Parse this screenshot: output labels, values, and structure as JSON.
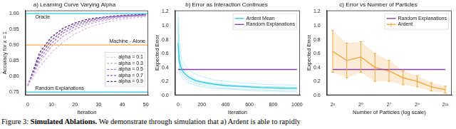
{
  "chart_data": [
    {
      "type": "line",
      "title": "a) Learning Curve Varying Alpha",
      "x_label": "Iteration",
      "y_label": "Accuracy for x = 1",
      "x": [
        0,
        5,
        10,
        15,
        20,
        25,
        30,
        35,
        40,
        45,
        50
      ],
      "series": [
        {
          "name": "alpha = 0.1",
          "color": "#dcc2ea",
          "line_style": "dashed",
          "values": [
            0.77,
            0.83,
            0.875,
            0.91,
            0.935,
            0.953,
            0.966,
            0.975,
            0.982,
            0.986,
            0.989
          ]
        },
        {
          "name": "alpha = 0.3",
          "color": "#c4a0dc",
          "line_style": "dashed",
          "values": [
            0.77,
            0.845,
            0.895,
            0.928,
            0.95,
            0.965,
            0.975,
            0.982,
            0.987,
            0.99,
            0.992
          ]
        },
        {
          "name": "alpha = 0.5",
          "color": "#a57cc6",
          "line_style": "dashed",
          "values": [
            0.77,
            0.855,
            0.905,
            0.938,
            0.958,
            0.971,
            0.98,
            0.986,
            0.99,
            0.992,
            0.994
          ]
        },
        {
          "name": "alpha = 0.7",
          "color": "#8456ad",
          "line_style": "dashed",
          "values": [
            0.77,
            0.865,
            0.915,
            0.945,
            0.964,
            0.976,
            0.984,
            0.989,
            0.992,
            0.994,
            0.996
          ]
        },
        {
          "name": "alpha = 0.9",
          "color": "#5f2c8c",
          "line_style": "dashed",
          "values": [
            0.77,
            0.875,
            0.925,
            0.953,
            0.97,
            0.981,
            0.987,
            0.991,
            0.994,
            0.996,
            0.997
          ]
        }
      ],
      "annotations": [
        {
          "text": "Oracle",
          "y": 1.0,
          "color": "#52d2ea"
        },
        {
          "text": "Machine - Alone",
          "y": 0.9,
          "color": "#f5a742"
        },
        {
          "text": "Random Explanations",
          "y": 0.75,
          "color": "#52d2ea"
        }
      ],
      "xlim": [
        -1,
        51
      ],
      "xticks": [
        0,
        10,
        20,
        30,
        40,
        50
      ],
      "ylim": [
        0.74,
        1.01
      ],
      "yticks": [
        0.75,
        {
          "value": 0.8,
          "label": "0.80"
        },
        0.85,
        {
          "value": 0.9,
          "label": "0.90"
        },
        0.95,
        {
          "value": 1.0,
          "label": "1.00"
        }
      ],
      "legend": "lower right",
      "grid": false
    },
    {
      "type": "line",
      "title": "b) Error as Interaction Continues",
      "x_label": "Iteration",
      "y_label": "Expected Error",
      "x": [
        0,
        5,
        10,
        20,
        35,
        50,
        75,
        100,
        150,
        200,
        300,
        400,
        500,
        600,
        700,
        800,
        900,
        1000
      ],
      "series": [
        {
          "color": "#8ee0ef",
          "values": [
            1.2,
            1.0,
            0.8,
            0.6,
            0.5,
            0.45,
            0.4,
            0.35,
            0.3,
            0.27,
            0.22,
            0.2,
            0.18,
            0.17,
            0.16,
            0.15,
            0.15,
            0.14
          ]
        },
        {
          "color": "#8ee0ef",
          "values": [
            0.9,
            0.7,
            0.55,
            0.45,
            0.38,
            0.33,
            0.28,
            0.24,
            0.2,
            0.18,
            0.15,
            0.13,
            0.12,
            0.11,
            0.1,
            0.1,
            0.09,
            0.09
          ]
        },
        {
          "color": "#8ee0ef",
          "values": [
            1.1,
            0.6,
            0.45,
            0.35,
            0.3,
            0.27,
            0.22,
            0.2,
            0.17,
            0.15,
            0.12,
            0.1,
            0.09,
            0.08,
            0.08,
            0.07,
            0.07,
            0.07
          ]
        },
        {
          "color": "#8ee0ef",
          "values": [
            0.6,
            0.5,
            0.42,
            0.38,
            0.32,
            0.28,
            0.25,
            0.22,
            0.19,
            0.17,
            0.15,
            0.14,
            0.13,
            0.13,
            0.12,
            0.12,
            0.11,
            0.11
          ]
        },
        {
          "color": "#8ee0ef",
          "values": [
            1.0,
            0.85,
            0.65,
            0.5,
            0.42,
            0.36,
            0.3,
            0.27,
            0.23,
            0.2,
            0.18,
            0.16,
            0.14,
            0.13,
            0.12,
            0.12,
            0.12,
            0.11
          ]
        },
        {
          "color": "#8ee0ef",
          "values": [
            0.8,
            0.55,
            0.4,
            0.3,
            0.25,
            0.22,
            0.19,
            0.17,
            0.14,
            0.12,
            0.1,
            0.09,
            0.08,
            0.07,
            0.06,
            0.06,
            0.05,
            0.05
          ]
        },
        {
          "name": "Ardent Mean",
          "color": "#36c8e0",
          "values": [
            0.75,
            0.6,
            0.5,
            0.42,
            0.36,
            0.32,
            0.28,
            0.25,
            0.21,
            0.19,
            0.16,
            0.14,
            0.13,
            0.12,
            0.11,
            0.105,
            0.1,
            0.1
          ]
        },
        {
          "name": "Random Explanations",
          "color": "#8a3fae",
          "values": [
            0.37,
            0.37,
            0.37,
            0.37,
            0.37,
            0.37,
            0.37,
            0.37,
            0.37,
            0.37,
            0.37,
            0.37,
            0.37,
            0.37,
            0.37,
            0.37,
            0.37,
            0.37
          ]
        }
      ],
      "xlim": [
        -25,
        1025
      ],
      "xticks": [
        0,
        200,
        400,
        600,
        800,
        1000
      ],
      "ylim": [
        0,
        1.22
      ],
      "yticks": [
        {
          "value": 0,
          "label": "0.0"
        },
        0.2,
        0.4,
        0.6,
        0.8,
        {
          "value": 1,
          "label": "1.0"
        },
        1.2
      ],
      "legend": "upper right",
      "grid": false
    },
    {
      "type": "line",
      "title": "c) Error vs Number of Particles",
      "x_label": "Number of Particles (log scale)",
      "y_label": "Expected Error",
      "x": [
        8,
        16,
        32,
        64,
        128,
        256,
        512,
        1024,
        2048
      ],
      "series": [
        {
          "name": "Random Explanations",
          "color": "#8a3fae",
          "values": [
            0.37,
            0.37,
            0.37,
            0.37,
            0.37,
            0.37,
            0.37,
            0.37,
            0.37
          ]
        },
        {
          "name": "Ardent",
          "color": "#f5a742",
          "values": [
            0.63,
            0.5,
            0.55,
            0.4,
            0.35,
            0.25,
            0.2,
            0.12,
            0.08
          ],
          "errors": [
            0.3,
            0.25,
            0.22,
            0.2,
            0.15,
            0.1,
            0.08,
            0.06,
            0.05
          ]
        }
      ],
      "xlim": [
        6,
        2800
      ],
      "xticks": [
        {
          "value": 8,
          "label": "2³"
        },
        {
          "value": 32,
          "label": "2⁵"
        },
        {
          "value": 128,
          "label": "2⁷"
        },
        {
          "value": 512,
          "label": "2⁹"
        },
        {
          "value": 2048,
          "label": "2¹¹"
        }
      ],
      "ylim": [
        0,
        1.22
      ],
      "yticks": [
        {
          "value": 0,
          "label": "0.0"
        },
        0.2,
        0.4,
        0.6,
        0.8,
        {
          "value": 1,
          "label": "1.0"
        },
        1.2
      ],
      "log": "x",
      "legend": "upper right",
      "grid": false
    }
  ],
  "caption": {
    "figure": "Figure 3:",
    "bold": "Simulated Ablations.",
    "text": "We demonstrate through simulation that a) Ardent is able to rapidly"
  }
}
